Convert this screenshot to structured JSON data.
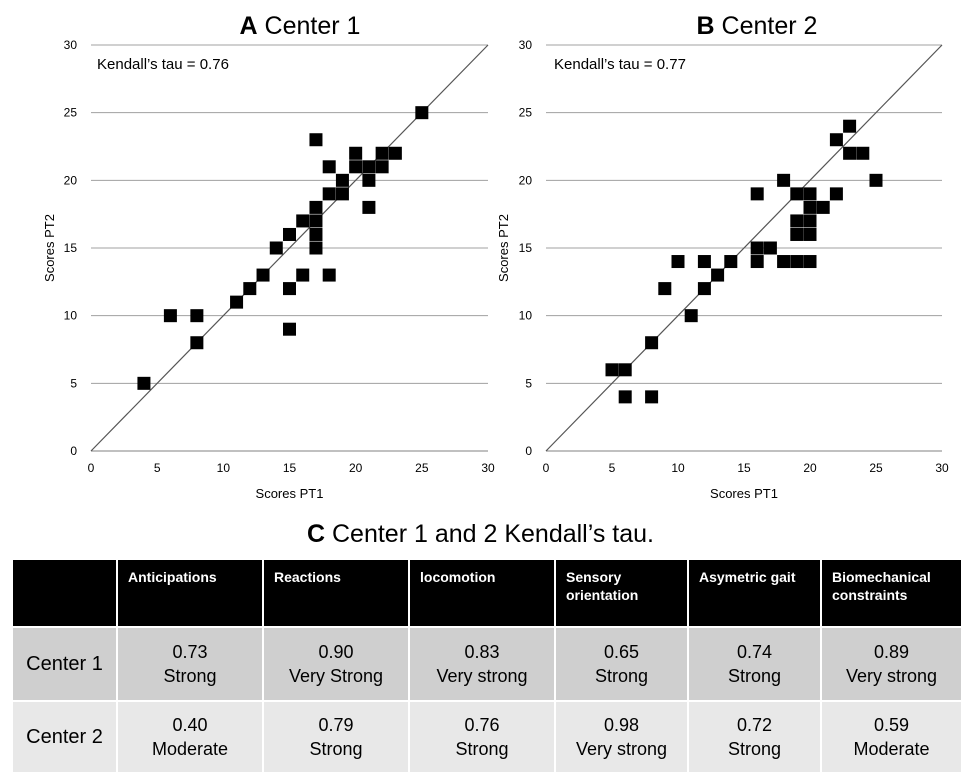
{
  "chart_data": [
    {
      "type": "scatter",
      "panel_letter": "A",
      "title": "Center 1",
      "annotation": "Kendall’s tau = 0.76",
      "xlabel": "Scores PT1",
      "ylabel": "Scores PT2",
      "xlim": [
        0,
        30
      ],
      "ylim": [
        0,
        30
      ],
      "xticks": [
        "0",
        "5",
        "10",
        "15",
        "20",
        "25",
        "30"
      ],
      "yticks": [
        "0",
        "5",
        "10",
        "15",
        "20",
        "25",
        "30"
      ],
      "grid": "horizontal",
      "reference_line": "y = x",
      "points": [
        [
          4,
          5
        ],
        [
          6,
          10
        ],
        [
          8,
          10
        ],
        [
          8,
          8
        ],
        [
          11,
          11
        ],
        [
          12,
          12
        ],
        [
          13,
          13
        ],
        [
          14,
          15
        ],
        [
          15,
          16
        ],
        [
          15,
          12
        ],
        [
          15,
          9
        ],
        [
          16,
          17
        ],
        [
          16,
          13
        ],
        [
          17,
          23
        ],
        [
          17,
          18
        ],
        [
          17,
          17
        ],
        [
          17,
          16
        ],
        [
          17,
          15
        ],
        [
          18,
          21
        ],
        [
          18,
          19
        ],
        [
          18,
          13
        ],
        [
          19,
          20
        ],
        [
          19,
          19
        ],
        [
          20,
          22
        ],
        [
          20,
          21
        ],
        [
          21,
          21
        ],
        [
          21,
          20
        ],
        [
          21,
          18
        ],
        [
          22,
          22
        ],
        [
          22,
          21
        ],
        [
          23,
          22
        ],
        [
          25,
          25
        ]
      ]
    },
    {
      "type": "scatter",
      "panel_letter": "B",
      "title": "Center 2",
      "annotation": "Kendall’s tau = 0.77",
      "xlabel": "Scores PT1",
      "ylabel": "Scores PT2",
      "xlim": [
        0,
        30
      ],
      "ylim": [
        0,
        30
      ],
      "xticks": [
        "0",
        "5",
        "10",
        "15",
        "20",
        "25",
        "30"
      ],
      "yticks": [
        "0",
        "5",
        "10",
        "15",
        "20",
        "25",
        "30"
      ],
      "grid": "horizontal",
      "reference_line": "y = x",
      "points": [
        [
          5,
          6
        ],
        [
          6,
          6
        ],
        [
          6,
          4
        ],
        [
          8,
          8
        ],
        [
          8,
          4
        ],
        [
          9,
          12
        ],
        [
          10,
          14
        ],
        [
          11,
          10
        ],
        [
          12,
          14
        ],
        [
          12,
          12
        ],
        [
          13,
          13
        ],
        [
          14,
          14
        ],
        [
          16,
          19
        ],
        [
          16,
          15
        ],
        [
          16,
          14
        ],
        [
          17,
          15
        ],
        [
          18,
          20
        ],
        [
          18,
          14
        ],
        [
          19,
          19
        ],
        [
          19,
          17
        ],
        [
          19,
          16
        ],
        [
          19,
          14
        ],
        [
          20,
          19
        ],
        [
          20,
          18
        ],
        [
          20,
          17
        ],
        [
          20,
          16
        ],
        [
          20,
          14
        ],
        [
          21,
          18
        ],
        [
          22,
          23
        ],
        [
          22,
          19
        ],
        [
          23,
          24
        ],
        [
          23,
          22
        ],
        [
          24,
          22
        ],
        [
          25,
          20
        ]
      ]
    }
  ],
  "table": {
    "letter": "C",
    "title": "Center 1 and 2 Kendall’s tau.",
    "headers": [
      "",
      "Anticipations",
      "Reactions",
      "locomotion",
      "Sensory orientation",
      "Asymetric gait",
      "Biomechanical constraints"
    ],
    "rows": [
      {
        "label": "Center 1",
        "cells": [
          {
            "value": "0.73",
            "strength": "Strong"
          },
          {
            "value": "0.90",
            "strength": "Very Strong"
          },
          {
            "value": "0.83",
            "strength": "Very strong"
          },
          {
            "value": "0.65",
            "strength": "Strong"
          },
          {
            "value": "0.74",
            "strength": "Strong"
          },
          {
            "value": "0.89",
            "strength": "Very strong"
          }
        ]
      },
      {
        "label": "Center 2",
        "cells": [
          {
            "value": "0.40",
            "strength": "Moderate"
          },
          {
            "value": "0.79",
            "strength": "Strong"
          },
          {
            "value": "0.76",
            "strength": "Strong"
          },
          {
            "value": "0.98",
            "strength": "Very strong"
          },
          {
            "value": "0.72",
            "strength": "Strong"
          },
          {
            "value": "0.59",
            "strength": "Moderate"
          }
        ]
      }
    ]
  },
  "colors": {
    "marker": "#000000",
    "gridline": "#a0a0a0",
    "reference_line": "#555555",
    "header_bg": "#000000",
    "header_text": "#ffffff",
    "row1_bg": "#cfcfcf",
    "row2_bg": "#e8e8e8"
  }
}
